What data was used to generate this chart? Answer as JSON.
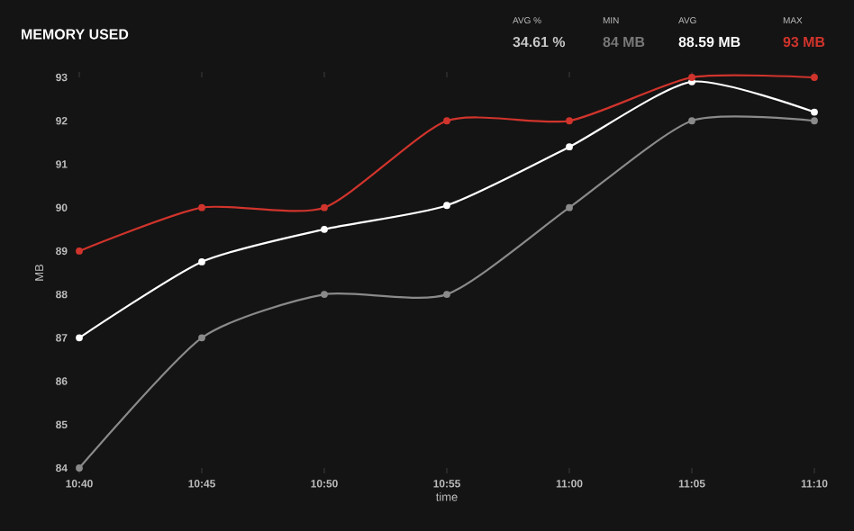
{
  "chart_data": {
    "type": "line",
    "title": "MEMORY USED",
    "xlabel": "time",
    "ylabel": "MB",
    "annotations": [
      "AVG %",
      "34.61 %",
      "MIN",
      "84 MB",
      "AVG",
      "88.59 MB",
      "MAX",
      "93 MB"
    ],
    "categories": [
      "10:40",
      "10:45",
      "10:50",
      "10:55",
      "11:00",
      "11:05",
      "11:10"
    ],
    "series": [
      {
        "color": "#8a8a8a",
        "values": [
          84,
          87,
          88,
          88,
          90,
          92,
          92
        ]
      },
      {
        "color": "#ffffff",
        "values": [
          87,
          88.75,
          89.5,
          90.05,
          91.4,
          92.9,
          92.2
        ]
      },
      {
        "color": "#d0342c",
        "values": [
          89,
          90,
          90,
          92,
          92,
          93,
          93
        ]
      }
    ],
    "ylim": [
      84,
      93
    ],
    "yticks": [
      84,
      85,
      86,
      87,
      88,
      89,
      90,
      91,
      92,
      93
    ],
    "marker": "circle"
  }
}
